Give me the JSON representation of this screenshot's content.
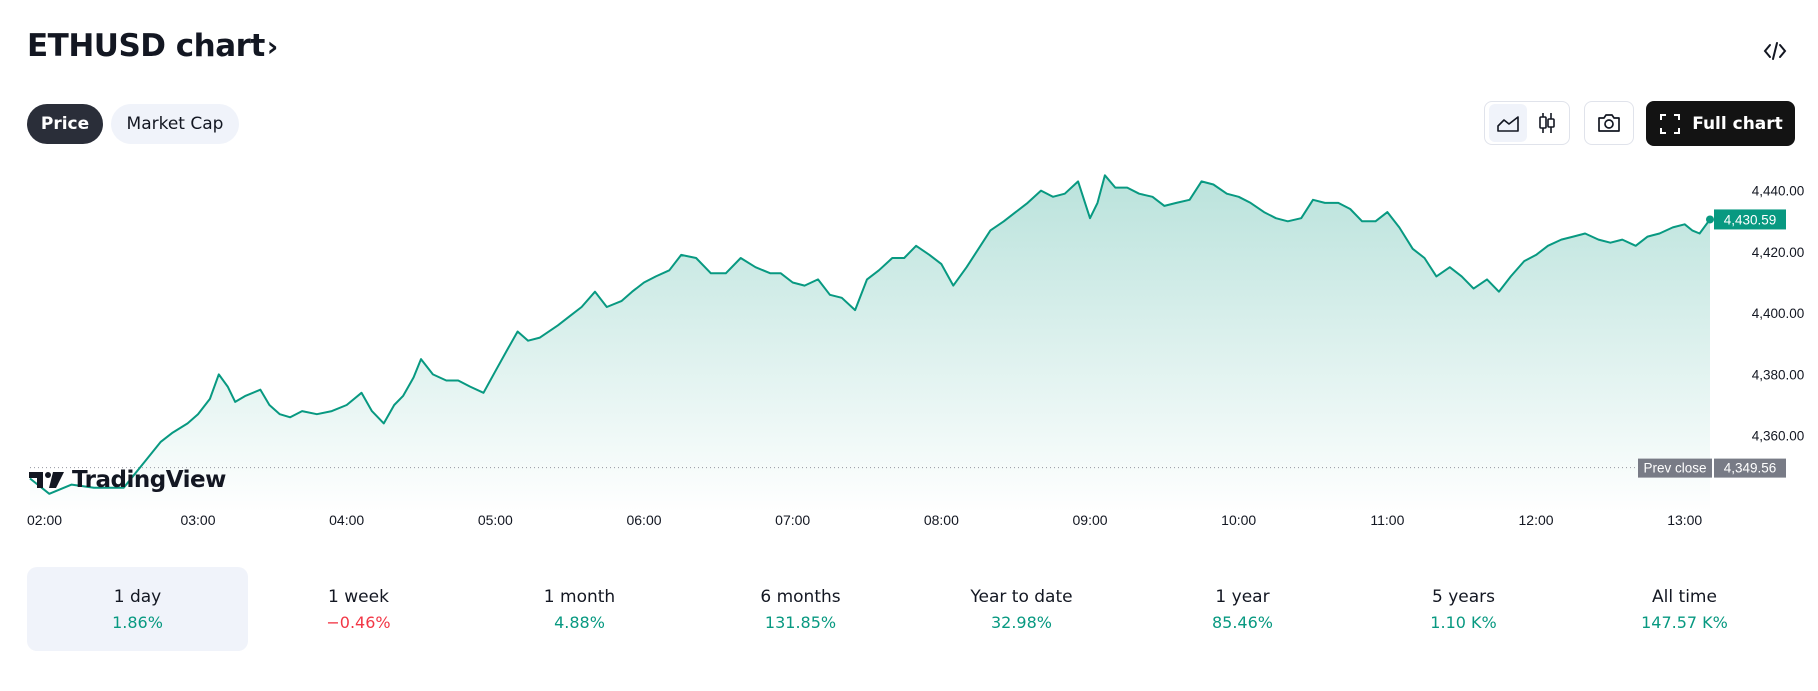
{
  "header": {
    "title": "ETHUSD chart",
    "chevron": "›",
    "embed_icon": "code-icon"
  },
  "price_toggle": {
    "price_label": "Price",
    "market_cap_label": "Market Cap"
  },
  "toolbar": {
    "area_icon": "area-chart-icon",
    "candle_icon": "candlestick-icon",
    "camera_icon": "camera-icon",
    "full_chart_label": "Full chart",
    "fullscreen_icon": "fullscreen-icon"
  },
  "branding": {
    "logo_text": "TradingView"
  },
  "colors": {
    "line": "#089981",
    "accent_dark": "#131313",
    "prev_close_badge": "#787b86"
  },
  "chart_data": {
    "type": "area",
    "symbol": "ETHUSD",
    "x_ticks": [
      "02:00",
      "03:00",
      "04:00",
      "05:00",
      "06:00",
      "07:00",
      "08:00",
      "09:00",
      "10:00",
      "11:00",
      "12:00",
      "13:00"
    ],
    "y_ticks": [
      "4,440.00",
      "4,420.00",
      "4,400.00",
      "4,380.00",
      "4,360.00"
    ],
    "y_tick_values": [
      4440,
      4420,
      4400,
      4380,
      4360
    ],
    "ylim": [
      4338,
      4450
    ],
    "x_range_hours": [
      1.87,
      13.17
    ],
    "last_price": 4430.59,
    "last_price_label": "4,430.59",
    "prev_close": 4349.56,
    "prev_close_label": "4,349.56",
    "prev_close_text": "Prev close",
    "series": [
      {
        "name": "ETHUSD",
        "x": [
          1.87,
          2.0,
          2.15,
          2.3,
          2.5,
          2.65,
          2.75,
          2.83,
          2.93,
          3.0,
          3.08,
          3.14,
          3.2,
          3.25,
          3.32,
          3.42,
          3.48,
          3.55,
          3.62,
          3.7,
          3.8,
          3.9,
          4.0,
          4.1,
          4.17,
          4.25,
          4.32,
          4.38,
          4.45,
          4.5,
          4.58,
          4.67,
          4.75,
          4.83,
          4.92,
          5.0,
          5.08,
          5.15,
          5.22,
          5.3,
          5.42,
          5.5,
          5.58,
          5.67,
          5.75,
          5.85,
          5.92,
          6.0,
          6.08,
          6.17,
          6.25,
          6.35,
          6.45,
          6.55,
          6.65,
          6.75,
          6.85,
          6.92,
          7.0,
          7.08,
          7.17,
          7.25,
          7.33,
          7.42,
          7.5,
          7.58,
          7.67,
          7.75,
          7.83,
          7.92,
          8.0,
          8.08,
          8.17,
          8.25,
          8.33,
          8.42,
          8.5,
          8.58,
          8.67,
          8.75,
          8.83,
          8.92,
          9.0,
          9.05,
          9.1,
          9.17,
          9.25,
          9.33,
          9.42,
          9.5,
          9.58,
          9.67,
          9.75,
          9.83,
          9.92,
          10.0,
          10.08,
          10.17,
          10.25,
          10.33,
          10.42,
          10.5,
          10.58,
          10.67,
          10.75,
          10.83,
          10.92,
          11.0,
          11.08,
          11.17,
          11.25,
          11.33,
          11.42,
          11.5,
          11.58,
          11.67,
          11.75,
          11.83,
          11.92,
          12.0,
          12.08,
          12.17,
          12.25,
          12.33,
          12.42,
          12.5,
          12.58,
          12.67,
          12.75,
          12.83,
          12.92,
          13.0,
          13.05,
          13.1,
          13.17
        ],
        "values": [
          4346,
          4341,
          4344,
          4343,
          4343,
          4352,
          4358,
          4361,
          4364,
          4367,
          4372,
          4380,
          4376,
          4371,
          4373,
          4375,
          4370,
          4367,
          4366,
          4368,
          4367,
          4368,
          4370,
          4374,
          4368,
          4364,
          4370,
          4373,
          4379,
          4385,
          4380,
          4378,
          4378,
          4376,
          4374,
          4381,
          4388,
          4394,
          4391,
          4392,
          4396,
          4399,
          4402,
          4407,
          4402,
          4404,
          4407,
          4410,
          4412,
          4414,
          4419,
          4418,
          4413,
          4413,
          4418,
          4415,
          4413,
          4413,
          4410,
          4409,
          4411,
          4406,
          4405,
          4401,
          4411,
          4414,
          4418,
          4418,
          4422,
          4419,
          4416,
          4409,
          4415,
          4421,
          4427,
          4430,
          4433,
          4436,
          4440,
          4438,
          4439,
          4443,
          4431,
          4436,
          4445,
          4441,
          4441,
          4439,
          4438,
          4435,
          4436,
          4437,
          4443,
          4442,
          4439,
          4438,
          4436,
          4433,
          4431,
          4430,
          4431,
          4437,
          4436,
          4436,
          4434,
          4430,
          4430,
          4433,
          4428,
          4421,
          4418,
          4412,
          4415,
          4412,
          4408,
          4411,
          4407,
          4412,
          4417,
          4419,
          4422,
          4424,
          4425,
          4426,
          4424,
          4423,
          4424,
          4422,
          4425,
          4426,
          4428,
          4429,
          4427,
          4426,
          4430.59
        ]
      }
    ]
  },
  "periods": [
    {
      "label": "1 day",
      "change": "1.86%",
      "dir": "up"
    },
    {
      "label": "1 week",
      "change": "−0.46%",
      "dir": "down"
    },
    {
      "label": "1 month",
      "change": "4.88%",
      "dir": "up"
    },
    {
      "label": "6 months",
      "change": "131.85%",
      "dir": "up"
    },
    {
      "label": "Year to date",
      "change": "32.98%",
      "dir": "up"
    },
    {
      "label": "1 year",
      "change": "85.46%",
      "dir": "up"
    },
    {
      "label": "5 years",
      "change": "1.10 K%",
      "dir": "up"
    },
    {
      "label": "All time",
      "change": "147.57 K%",
      "dir": "up"
    }
  ]
}
